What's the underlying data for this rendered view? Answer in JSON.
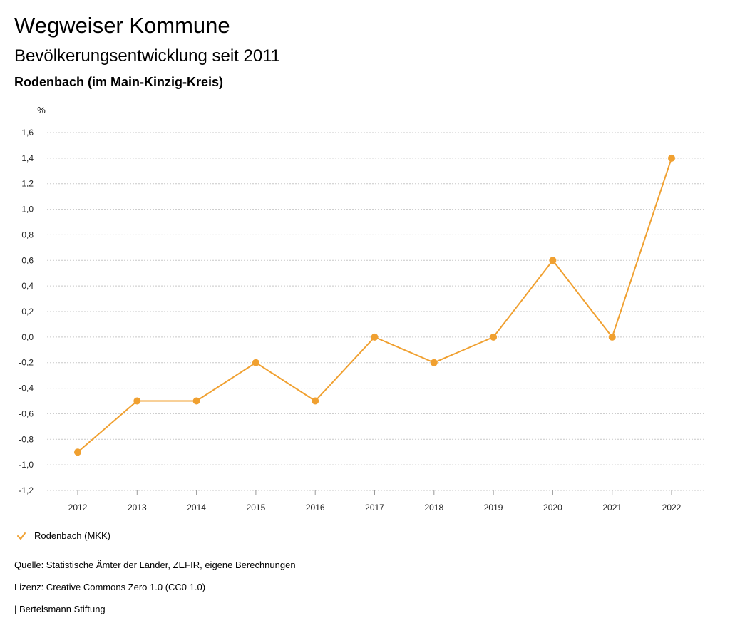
{
  "header": {
    "title": "Wegweiser Kommune",
    "subtitle": "Bevölkerungsentwicklung seit 2011",
    "region": "Rodenbach (im Main-Kinzig-Kreis)"
  },
  "chart_data": {
    "type": "line",
    "ylabel": "%",
    "xlabel": "",
    "categories": [
      "2012",
      "2013",
      "2014",
      "2015",
      "2016",
      "2017",
      "2018",
      "2019",
      "2020",
      "2021",
      "2022"
    ],
    "series": [
      {
        "name": "Rodenbach (MKK)",
        "color": "#f0a030",
        "values": [
          -0.9,
          -0.5,
          -0.5,
          -0.2,
          -0.5,
          0.0,
          -0.2,
          0.0,
          0.6,
          0.0,
          1.4
        ]
      }
    ],
    "ylim": [
      -1.2,
      1.6
    ],
    "yticks": [
      -1.2,
      -1.0,
      -0.8,
      -0.6,
      -0.4,
      -0.2,
      0.0,
      0.2,
      0.4,
      0.6,
      0.8,
      1.0,
      1.2,
      1.4,
      1.6
    ],
    "ytick_labels": [
      "-1,2",
      "-1,0",
      "-0,8",
      "-0,6",
      "-0,4",
      "-0,2",
      "0,0",
      "0,2",
      "0,4",
      "0,6",
      "0,8",
      "1,0",
      "1,2",
      "1,4",
      "1,6"
    ],
    "grid": true,
    "legend_position": "bottom-left"
  },
  "legend": {
    "label": "Rodenbach (MKK)"
  },
  "footer": {
    "source": "Quelle: Statistische Ämter der Länder, ZEFIR, eigene Berechnungen",
    "license": "Lizenz: Creative Commons Zero 1.0 (CC0 1.0)",
    "publisher": "| Bertelsmann Stiftung"
  }
}
